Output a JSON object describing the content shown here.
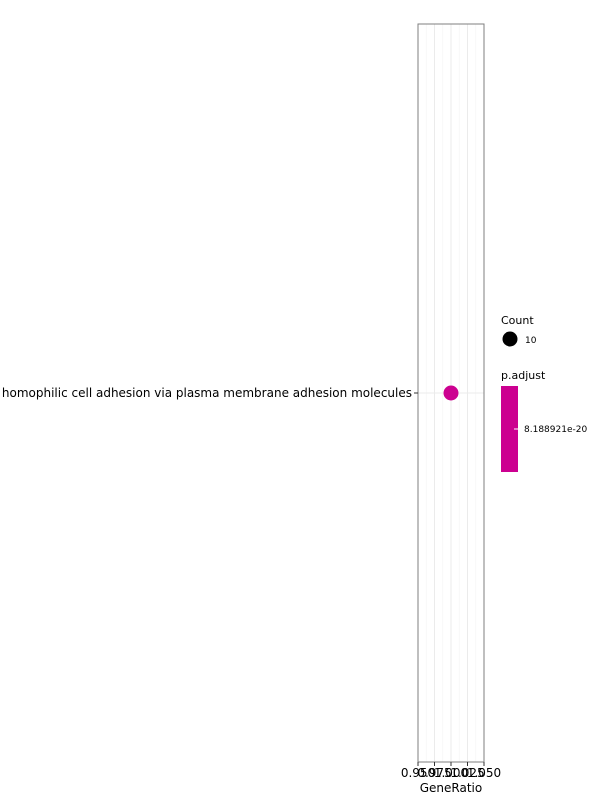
{
  "chart_data": {
    "type": "scatter",
    "xlabel": "GeneRatio",
    "x_ticks": [
      0.95,
      0.975,
      1.0,
      1.025,
      1.05
    ],
    "x_tick_labels": [
      "0.950",
      "0.975",
      "1.000",
      "1.025",
      "1.050"
    ],
    "xlim": [
      0.95,
      1.05
    ],
    "categories": [
      "homophilic cell adhesion via plasma membrane adhesion molecules"
    ],
    "points": [
      {
        "term": "homophilic cell adhesion via plasma membrane adhesion molecules",
        "gene_ratio": 1.0,
        "count": 10,
        "p_adjust": 8.188921e-20
      }
    ],
    "grid": true,
    "legend": {
      "position": "right",
      "size_title": "Count",
      "size_label": "10",
      "color_title": "p.adjust",
      "color_label": "8.188921e-20"
    },
    "point_color": "#CC0090"
  }
}
